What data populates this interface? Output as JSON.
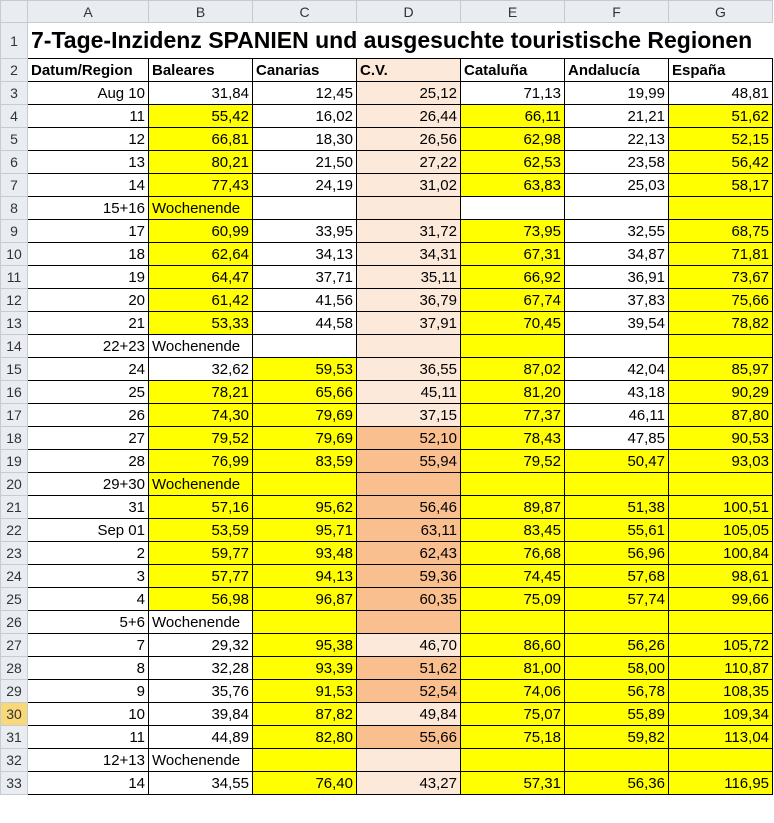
{
  "colors": {
    "y": "#ffff00",
    "w": "#ffffff",
    "p": "#fde9d9",
    "o": "#fabf8f"
  },
  "column_headers": [
    "A",
    "B",
    "C",
    "D",
    "E",
    "F",
    "G"
  ],
  "selected_row": 30,
  "title": "7-Tage-Inzidenz SPANIEN und ausgesuchte touristische Regionen",
  "headers": [
    "Datum/Region",
    "Baleares",
    "Canarias",
    "C.V.",
    "Cataluña",
    "Andalucía",
    "España"
  ],
  "header_fills": "wwwpwww",
  "rows": [
    {
      "n": 3,
      "v": [
        "Aug 10",
        "31,84",
        "12,45",
        "25,12",
        "71,13",
        "19,99",
        "48,81"
      ],
      "f": "wwwpwww"
    },
    {
      "n": 4,
      "v": [
        "11",
        "55,42",
        "16,02",
        "26,44",
        "66,11",
        "21,21",
        "51,62"
      ],
      "f": "wywpywy"
    },
    {
      "n": 5,
      "v": [
        "12",
        "66,81",
        "18,30",
        "26,56",
        "62,98",
        "22,13",
        "52,15"
      ],
      "f": "wywpywy"
    },
    {
      "n": 6,
      "v": [
        "13",
        "80,21",
        "21,50",
        "27,22",
        "62,53",
        "23,58",
        "56,42"
      ],
      "f": "wywpywy"
    },
    {
      "n": 7,
      "v": [
        "14",
        "77,43",
        "24,19",
        "31,02",
        "63,83",
        "25,03",
        "58,17"
      ],
      "f": "wywpywy"
    },
    {
      "n": 8,
      "v": [
        "15+16",
        "Wochenende",
        "",
        "",
        "",
        "",
        ""
      ],
      "f": "wywpwwy"
    },
    {
      "n": 9,
      "v": [
        "17",
        "60,99",
        "33,95",
        "31,72",
        "73,95",
        "32,55",
        "68,75"
      ],
      "f": "wywpywy"
    },
    {
      "n": 10,
      "v": [
        "18",
        "62,64",
        "34,13",
        "34,31",
        "67,31",
        "34,87",
        "71,81"
      ],
      "f": "wywpywy"
    },
    {
      "n": 11,
      "v": [
        "19",
        "64,47",
        "37,71",
        "35,11",
        "66,92",
        "36,91",
        "73,67"
      ],
      "f": "wywpywy"
    },
    {
      "n": 12,
      "v": [
        "20",
        "61,42",
        "41,56",
        "36,79",
        "67,74",
        "37,83",
        "75,66"
      ],
      "f": "wywpywy"
    },
    {
      "n": 13,
      "v": [
        "21",
        "53,33",
        "44,58",
        "37,91",
        "70,45",
        "39,54",
        "78,82"
      ],
      "f": "wywpywy"
    },
    {
      "n": 14,
      "v": [
        "22+23",
        "Wochenende",
        "",
        "",
        "",
        "",
        ""
      ],
      "f": "wwwpywy"
    },
    {
      "n": 15,
      "v": [
        "24",
        "32,62",
        "59,53",
        "36,55",
        "87,02",
        "42,04",
        "85,97"
      ],
      "f": "wwypywy"
    },
    {
      "n": 16,
      "v": [
        "25",
        "78,21",
        "65,66",
        "45,11",
        "81,20",
        "43,18",
        "90,29"
      ],
      "f": "wyypywy"
    },
    {
      "n": 17,
      "v": [
        "26",
        "74,30",
        "79,69",
        "37,15",
        "77,37",
        "46,11",
        "87,80"
      ],
      "f": "wyypywy"
    },
    {
      "n": 18,
      "v": [
        "27",
        "79,52",
        "79,69",
        "52,10",
        "78,43",
        "47,85",
        "90,53"
      ],
      "f": "wyyoywy"
    },
    {
      "n": 19,
      "v": [
        "28",
        "76,99",
        "83,59",
        "55,94",
        "79,52",
        "50,47",
        "93,03"
      ],
      "f": "wyyoyyy"
    },
    {
      "n": 20,
      "v": [
        "29+30",
        "Wochenende",
        "",
        "",
        "",
        "",
        ""
      ],
      "f": "wyyoyyy"
    },
    {
      "n": 21,
      "v": [
        "31",
        "57,16",
        "95,62",
        "56,46",
        "89,87",
        "51,38",
        "100,51"
      ],
      "f": "wyyoyyy"
    },
    {
      "n": 22,
      "v": [
        "Sep 01",
        "53,59",
        "95,71",
        "63,11",
        "83,45",
        "55,61",
        "105,05"
      ],
      "f": "wyyoyyy"
    },
    {
      "n": 23,
      "v": [
        "2",
        "59,77",
        "93,48",
        "62,43",
        "76,68",
        "56,96",
        "100,84"
      ],
      "f": "wyyoyyy"
    },
    {
      "n": 24,
      "v": [
        "3",
        "57,77",
        "94,13",
        "59,36",
        "74,45",
        "57,68",
        "98,61"
      ],
      "f": "wyyoyyy"
    },
    {
      "n": 25,
      "v": [
        "4",
        "56,98",
        "96,87",
        "60,35",
        "75,09",
        "57,74",
        "99,66"
      ],
      "f": "wyyoyyy"
    },
    {
      "n": 26,
      "v": [
        "5+6",
        "Wochenende",
        "",
        "",
        "",
        "",
        ""
      ],
      "f": "wwyoyyy"
    },
    {
      "n": 27,
      "v": [
        "7",
        "29,32",
        "95,38",
        "46,70",
        "86,60",
        "56,26",
        "105,72"
      ],
      "f": "wwypyyy"
    },
    {
      "n": 28,
      "v": [
        "8",
        "32,28",
        "93,39",
        "51,62",
        "81,00",
        "58,00",
        "110,87"
      ],
      "f": "wwyoyyy"
    },
    {
      "n": 29,
      "v": [
        "9",
        "35,76",
        "91,53",
        "52,54",
        "74,06",
        "56,78",
        "108,35"
      ],
      "f": "wwyoyyy"
    },
    {
      "n": 30,
      "v": [
        "10",
        "39,84",
        "87,82",
        "49,84",
        "75,07",
        "55,89",
        "109,34"
      ],
      "f": "wwypyyy"
    },
    {
      "n": 31,
      "v": [
        "11",
        "44,89",
        "82,80",
        "55,66",
        "75,18",
        "59,82",
        "113,04"
      ],
      "f": "wwyoyyy"
    },
    {
      "n": 32,
      "v": [
        "12+13",
        "Wochenende",
        "",
        "",
        "",
        "",
        ""
      ],
      "f": "wwypyyy"
    },
    {
      "n": 33,
      "v": [
        "14",
        "34,55",
        "76,40",
        "43,27",
        "57,31",
        "56,36",
        "116,95"
      ],
      "f": "wwypyyy"
    }
  ]
}
